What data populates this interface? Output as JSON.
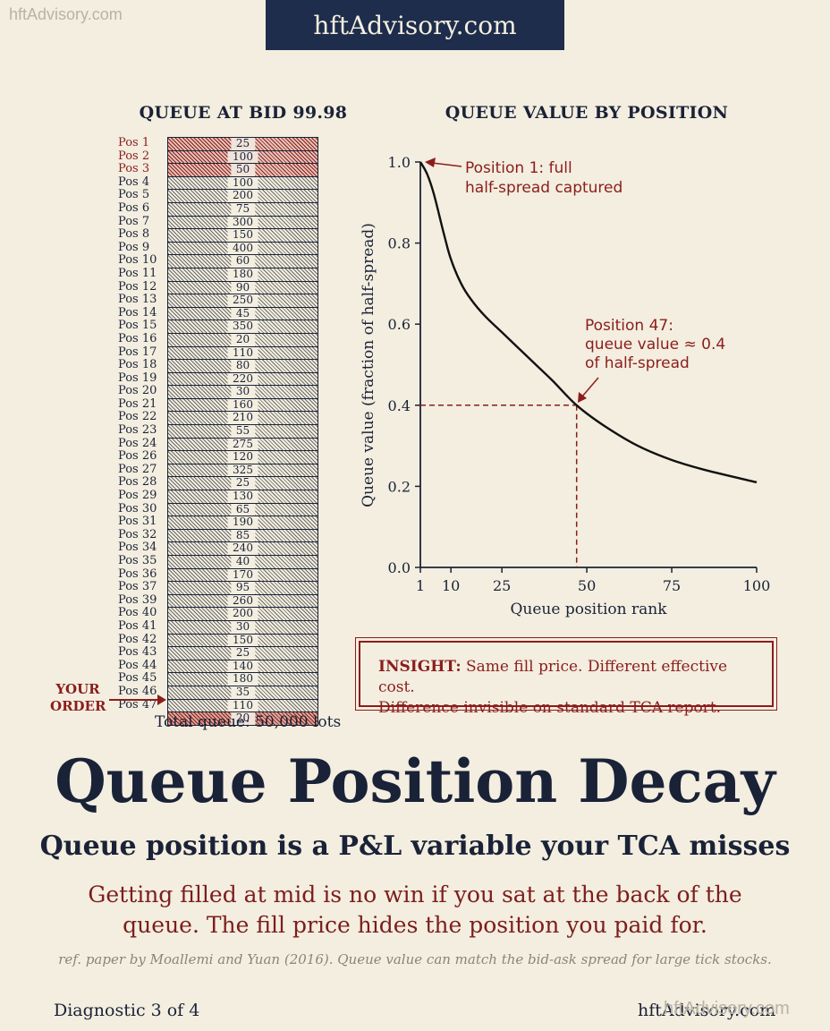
{
  "watermark_top": "hftAdvisory.com",
  "banner": "hftAdvisory.com",
  "queue": {
    "title": "QUEUE AT BID 99.98",
    "positions": [
      {
        "label": "Pos 1",
        "lots": "25"
      },
      {
        "label": "Pos 2",
        "lots": "100"
      },
      {
        "label": "Pos 3",
        "lots": "50"
      },
      {
        "label": "Pos 4",
        "lots": "100"
      },
      {
        "label": "Pos 5",
        "lots": "200"
      },
      {
        "label": "Pos 6",
        "lots": "75"
      },
      {
        "label": "Pos 7",
        "lots": "300"
      },
      {
        "label": "Pos 8",
        "lots": "150"
      },
      {
        "label": "Pos 9",
        "lots": "400"
      },
      {
        "label": "Pos 10",
        "lots": "60"
      },
      {
        "label": "Pos 11",
        "lots": "180"
      },
      {
        "label": "Pos 12",
        "lots": "90"
      },
      {
        "label": "Pos 13",
        "lots": "250"
      },
      {
        "label": "Pos 14",
        "lots": "45"
      },
      {
        "label": "Pos 15",
        "lots": "350"
      },
      {
        "label": "Pos 16",
        "lots": "20"
      },
      {
        "label": "Pos 17",
        "lots": "110"
      },
      {
        "label": "Pos 18",
        "lots": "80"
      },
      {
        "label": "Pos 19",
        "lots": "220"
      },
      {
        "label": "Pos 20",
        "lots": "30"
      },
      {
        "label": "Pos 21",
        "lots": "160"
      },
      {
        "label": "Pos 22",
        "lots": "210"
      },
      {
        "label": "Pos 23",
        "lots": "55"
      },
      {
        "label": "Pos 24",
        "lots": "275"
      },
      {
        "label": "Pos 26",
        "lots": "120"
      },
      {
        "label": "Pos 27",
        "lots": "325"
      },
      {
        "label": "Pos 28",
        "lots": "25"
      },
      {
        "label": "Pos 29",
        "lots": "130"
      },
      {
        "label": "Pos 30",
        "lots": "65"
      },
      {
        "label": "Pos 31",
        "lots": "190"
      },
      {
        "label": "Pos 32",
        "lots": "85"
      },
      {
        "label": "Pos 34",
        "lots": "240"
      },
      {
        "label": "Pos 35",
        "lots": "40"
      },
      {
        "label": "Pos 36",
        "lots": "170"
      },
      {
        "label": "Pos 37",
        "lots": "95"
      },
      {
        "label": "Pos 39",
        "lots": "260"
      },
      {
        "label": "Pos 40",
        "lots": "200"
      },
      {
        "label": "Pos 41",
        "lots": "30"
      },
      {
        "label": "Pos 42",
        "lots": "150"
      },
      {
        "label": "Pos 43",
        "lots": "25"
      },
      {
        "label": "Pos 44",
        "lots": "140"
      },
      {
        "label": "Pos 45",
        "lots": "180"
      },
      {
        "label": "Pos 46",
        "lots": "35"
      },
      {
        "label": "Pos 47",
        "lots": "110"
      }
    ],
    "your_order_lots": "20",
    "your_order_label_line1": "YOUR",
    "your_order_label_line2": "ORDER",
    "total": "Total queue: 50,000 lots"
  },
  "chart_data": {
    "type": "line",
    "title": "QUEUE VALUE BY POSITION",
    "xlabel": "Queue position rank",
    "ylabel": "Queue value (fraction of half-spread)",
    "xlim": [
      1,
      100
    ],
    "ylim": [
      0.0,
      1.0
    ],
    "xticks": [
      1,
      10,
      25,
      50,
      75,
      100
    ],
    "yticks": [
      0.0,
      0.2,
      0.4,
      0.6,
      0.8,
      1.0
    ],
    "ytick_labels": [
      "0.0",
      "0.2",
      "0.4",
      "0.6",
      "0.8",
      "1.0"
    ],
    "series": [
      {
        "x": [
          1,
          3,
          5,
          8,
          10,
          13,
          16,
          20,
          25,
          30,
          35,
          40,
          47,
          55,
          65,
          75,
          85,
          100
        ],
        "y": [
          1.0,
          0.97,
          0.92,
          0.82,
          0.76,
          0.7,
          0.66,
          0.62,
          0.58,
          0.54,
          0.5,
          0.46,
          0.4,
          0.35,
          0.3,
          0.265,
          0.24,
          0.21
        ]
      }
    ],
    "annotations": [
      {
        "x": 1,
        "y": 1.0,
        "text_line1": "Position 1: full",
        "text_line2": "half-spread captured"
      },
      {
        "x": 47,
        "y": 0.4,
        "text_line1": "Position 47:",
        "text_line2": "queue value ≈ 0.4",
        "text_line3": "of half-spread"
      }
    ],
    "accent_color": "#8b1d1d",
    "line_color": "#111111"
  },
  "insight": {
    "label": "INSIGHT:",
    "line1": " Same fill price. Different effective cost.",
    "line2": "Difference invisible on standard TCA report."
  },
  "headline": "Queue Position Decay",
  "subhead": "Queue position is a P&L variable your TCA misses",
  "body_line1": "Getting filled at mid is no win if you sat at the back of the",
  "body_line2": "queue. The fill price hides the position you paid for.",
  "reference": "ref. paper by Moallemi and Yuan (2016). Queue value can match the bid-ask spread for large tick stocks.",
  "footer_left": "Diagnostic 3 of 4",
  "footer_right": "hftAdvisory.com",
  "watermark_bottom": "hftAdvisory.com"
}
